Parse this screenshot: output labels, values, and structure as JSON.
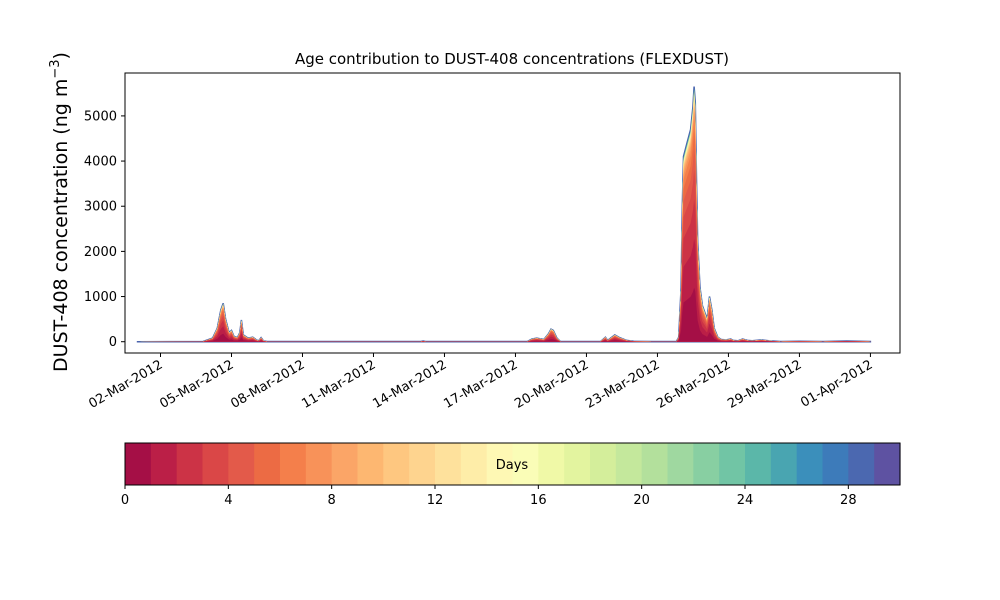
{
  "chart_data": {
    "type": "area",
    "title": "Age contribution to DUST-408 concentrations (FLEXDUST)",
    "ylabel_main": "DUST-408 concentration (ng m",
    "ylabel_sup": "−3",
    "ylabel_close": ")",
    "xlabel": "",
    "x_start": "01-Mar-2012",
    "x_end": "01-Apr-2012",
    "xlim": [
      "28-Feb-2012 12:00",
      "02-Apr-2012 06:00"
    ],
    "ylim": [
      -250,
      5950
    ],
    "yticks": [
      0,
      1000,
      2000,
      3000,
      4000,
      5000
    ],
    "xtick_labels": [
      "02-Mar-2012",
      "05-Mar-2012",
      "08-Mar-2012",
      "11-Mar-2012",
      "14-Mar-2012",
      "17-Mar-2012",
      "20-Mar-2012",
      "23-Mar-2012",
      "26-Mar-2012",
      "29-Mar-2012",
      "01-Apr-2012"
    ],
    "xtick_days": [
      1,
      4,
      7,
      10,
      13,
      16,
      19,
      22,
      25,
      28,
      31
    ],
    "total": [
      [
        0,
        0
      ],
      [
        2.8,
        5
      ],
      [
        3.2,
        80
      ],
      [
        3.4,
        300
      ],
      [
        3.55,
        700
      ],
      [
        3.65,
        850
      ],
      [
        3.75,
        500
      ],
      [
        3.9,
        200
      ],
      [
        4.0,
        250
      ],
      [
        4.1,
        120
      ],
      [
        4.25,
        90
      ],
      [
        4.35,
        200
      ],
      [
        4.42,
        480
      ],
      [
        4.5,
        150
      ],
      [
        4.7,
        80
      ],
      [
        4.9,
        100
      ],
      [
        5.05,
        40
      ],
      [
        5.15,
        20
      ],
      [
        5.25,
        90
      ],
      [
        5.35,
        20
      ],
      [
        5.5,
        5
      ],
      [
        7,
        5
      ],
      [
        10,
        5
      ],
      [
        12,
        5
      ],
      [
        12.1,
        15
      ],
      [
        12.2,
        5
      ],
      [
        16.5,
        5
      ],
      [
        16.7,
        60
      ],
      [
        16.9,
        80
      ],
      [
        17.2,
        50
      ],
      [
        17.4,
        180
      ],
      [
        17.5,
        280
      ],
      [
        17.6,
        250
      ],
      [
        17.75,
        80
      ],
      [
        17.9,
        5
      ],
      [
        19.6,
        5
      ],
      [
        19.8,
        100
      ],
      [
        19.9,
        30
      ],
      [
        20.05,
        90
      ],
      [
        20.2,
        150
      ],
      [
        20.4,
        90
      ],
      [
        20.7,
        30
      ],
      [
        21.0,
        10
      ],
      [
        21.8,
        5
      ],
      [
        22.8,
        5
      ],
      [
        22.9,
        100
      ],
      [
        23.0,
        1200
      ],
      [
        23.05,
        3000
      ],
      [
        23.1,
        4100
      ],
      [
        23.25,
        4400
      ],
      [
        23.4,
        4700
      ],
      [
        23.5,
        5200
      ],
      [
        23.55,
        5650
      ],
      [
        23.6,
        5300
      ],
      [
        23.65,
        3600
      ],
      [
        23.7,
        2200
      ],
      [
        23.8,
        1200
      ],
      [
        23.9,
        800
      ],
      [
        24.0,
        650
      ],
      [
        24.1,
        500
      ],
      [
        24.2,
        1000
      ],
      [
        24.3,
        700
      ],
      [
        24.4,
        300
      ],
      [
        24.55,
        100
      ],
      [
        24.7,
        50
      ],
      [
        24.9,
        40
      ],
      [
        25.1,
        60
      ],
      [
        25.2,
        30
      ],
      [
        25.4,
        20
      ],
      [
        25.6,
        60
      ],
      [
        25.8,
        30
      ],
      [
        26.0,
        20
      ],
      [
        26.4,
        40
      ],
      [
        26.7,
        20
      ],
      [
        27.2,
        5
      ],
      [
        28,
        10
      ],
      [
        29,
        5
      ],
      [
        30,
        15
      ],
      [
        31,
        5
      ]
    ],
    "series_fractions": [
      0.22,
      0.2,
      0.16,
      0.12,
      0.09,
      0.07,
      0.05,
      0.03,
      0.02,
      0.015,
      0.01,
      0.008,
      0.006,
      0.005,
      0.004,
      0.003,
      0.003,
      0.002,
      0.002,
      0.002,
      0.002,
      0.002,
      0.002,
      0.002,
      0.002,
      0.002,
      0.002,
      0.002,
      0.002,
      0.002
    ],
    "colorbar": {
      "label": "Days",
      "min": 0,
      "max": 30,
      "ticks": [
        0,
        4,
        8,
        12,
        16,
        20,
        24,
        28
      ],
      "colors": [
        "#a50f46",
        "#bb1f47",
        "#cc3346",
        "#da4747",
        "#e35a4a",
        "#ec6b44",
        "#f47f4b",
        "#f89259",
        "#fba567",
        "#fdb771",
        "#fec780",
        "#fed48f",
        "#fee19c",
        "#feeda8",
        "#fef8b4",
        "#fafdb7",
        "#f0f9a7",
        "#e3f49f",
        "#d4ee9b",
        "#c4e89c",
        "#b3e09c",
        "#9fd8a0",
        "#88cfa2",
        "#71c5a5",
        "#5bb7a9",
        "#49a5b1",
        "#3b8fbb",
        "#3d7bba",
        "#4b68b0",
        "#5e52a2"
      ]
    }
  }
}
